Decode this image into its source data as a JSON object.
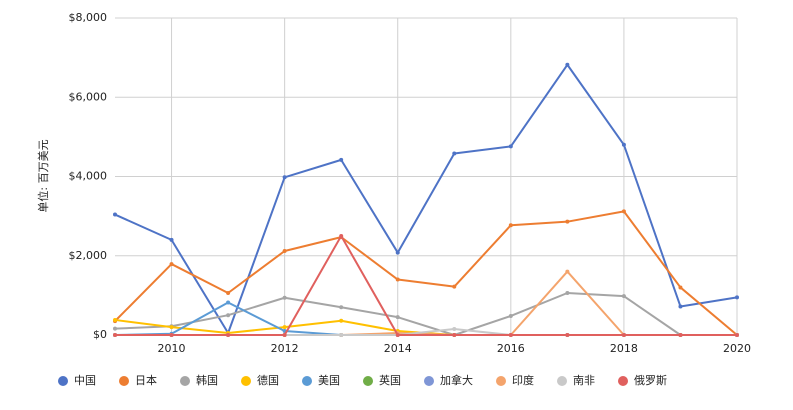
{
  "chart_data": {
    "type": "line",
    "y_label": "单位: 百万美元",
    "x": [
      2009,
      2010,
      2011,
      2012,
      2013,
      2014,
      2015,
      2016,
      2017,
      2018,
      2019,
      2020
    ],
    "xlim": [
      2009,
      2020
    ],
    "xticks": [
      2010,
      2012,
      2014,
      2016,
      2018,
      2020
    ],
    "ylim": [
      0,
      8000
    ],
    "yticks": [
      {
        "value": 0,
        "label": "$0"
      },
      {
        "value": 2000,
        "label": "$2,000"
      },
      {
        "value": 4000,
        "label": "$4,000"
      },
      {
        "value": 6000,
        "label": "$6,000"
      },
      {
        "value": 8000,
        "label": "$8,000"
      }
    ],
    "grid": true,
    "legend": "bottom",
    "series": [
      {
        "name": "中国",
        "color": "#4e73c6",
        "values": [
          3040,
          2400,
          50,
          3980,
          4420,
          2080,
          4580,
          4760,
          6820,
          4800,
          720,
          950
        ]
      },
      {
        "name": "日本",
        "color": "#ed7d31",
        "values": [
          350,
          1790,
          1060,
          2120,
          2470,
          1400,
          1220,
          2770,
          2860,
          3120,
          1200,
          0
        ]
      },
      {
        "name": "韩国",
        "color": "#a5a5a5",
        "values": [
          160,
          220,
          500,
          940,
          700,
          450,
          0,
          480,
          1060,
          980,
          0,
          0
        ]
      },
      {
        "name": "德国",
        "color": "#ffc000",
        "values": [
          380,
          200,
          50,
          200,
          360,
          100,
          0,
          0,
          0,
          0,
          0,
          0
        ]
      },
      {
        "name": "美国",
        "color": "#5b9bd5",
        "values": [
          0,
          30,
          820,
          100,
          0,
          0,
          0,
          0,
          0,
          0,
          0,
          0
        ]
      },
      {
        "name": "英国",
        "color": "#70ad47",
        "values": [
          0,
          0,
          0,
          0,
          0,
          0,
          0,
          0,
          0,
          0,
          0,
          0
        ]
      },
      {
        "name": "加拿大",
        "color": "#7f96d6",
        "values": [
          0,
          0,
          0,
          0,
          0,
          0,
          0,
          0,
          0,
          0,
          0,
          0
        ]
      },
      {
        "name": "印度",
        "color": "#f4a46c",
        "values": [
          0,
          0,
          0,
          0,
          0,
          50,
          0,
          0,
          1600,
          0,
          0,
          0
        ]
      },
      {
        "name": "南非",
        "color": "#c9c9c9",
        "values": [
          0,
          0,
          0,
          0,
          0,
          0,
          150,
          0,
          0,
          0,
          0,
          0
        ]
      },
      {
        "name": "俄罗斯",
        "color": "#e0605e",
        "values": [
          0,
          0,
          0,
          0,
          2500,
          0,
          0,
          0,
          0,
          0,
          0,
          0
        ]
      }
    ]
  }
}
